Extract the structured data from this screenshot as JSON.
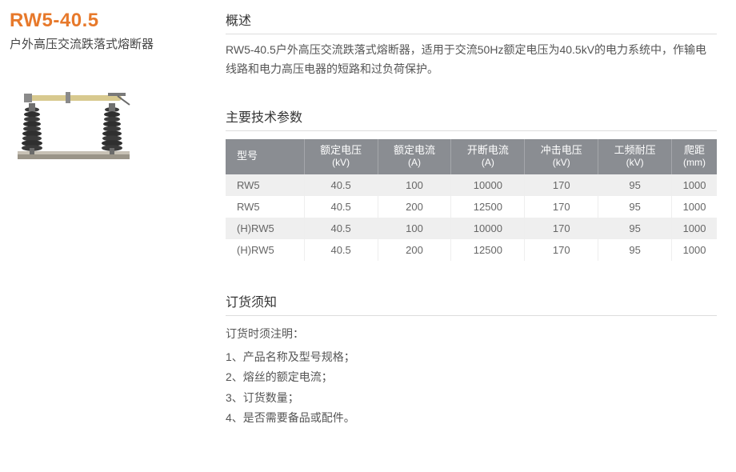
{
  "product": {
    "model": "RW5-40.5",
    "subtitle": "户外高压交流跌落式熔断器"
  },
  "sections": {
    "overview": {
      "title": "概述",
      "text": "RW5-40.5户外高压交流跌落式熔断器，适用于交流50Hz额定电压为40.5kV的电力系统中，作输电线路和电力高压电器的短路和过负荷保护。"
    },
    "params": {
      "title": "主要技术参数"
    },
    "order": {
      "title": "订货须知",
      "intro": "订货时须注明：",
      "items": [
        "1、产品名称及型号规格；",
        "2、熔丝的额定电流；",
        "3、订货数量；",
        "4、是否需要备品或配件。"
      ]
    }
  },
  "table": {
    "headers": [
      {
        "main": "型号",
        "unit": ""
      },
      {
        "main": "额定电压",
        "unit": "(kV)"
      },
      {
        "main": "额定电流",
        "unit": "(A)"
      },
      {
        "main": "开断电流",
        "unit": "(A)"
      },
      {
        "main": "冲击电压",
        "unit": "(kV)"
      },
      {
        "main": "工频耐压",
        "unit": "(kV)"
      },
      {
        "main": "爬距",
        "unit": "(mm)"
      }
    ],
    "rows": [
      [
        "RW5",
        "40.5",
        "100",
        "10000",
        "170",
        "95",
        "1000"
      ],
      [
        "RW5",
        "40.5",
        "200",
        "12500",
        "170",
        "95",
        "1000"
      ],
      [
        "(H)RW5",
        "40.5",
        "100",
        "10000",
        "170",
        "95",
        "1000"
      ],
      [
        "(H)RW5",
        "40.5",
        "200",
        "12500",
        "170",
        "95",
        "1000"
      ]
    ]
  },
  "styling": {
    "accent_color": "#e7792b",
    "table_header_bg": "#8a8d92",
    "table_row_odd_bg": "#efefef",
    "table_row_even_bg": "#ffffff",
    "text_color": "#555",
    "title_fontsize_pt": 18,
    "body_fontsize_pt": 10.5
  }
}
